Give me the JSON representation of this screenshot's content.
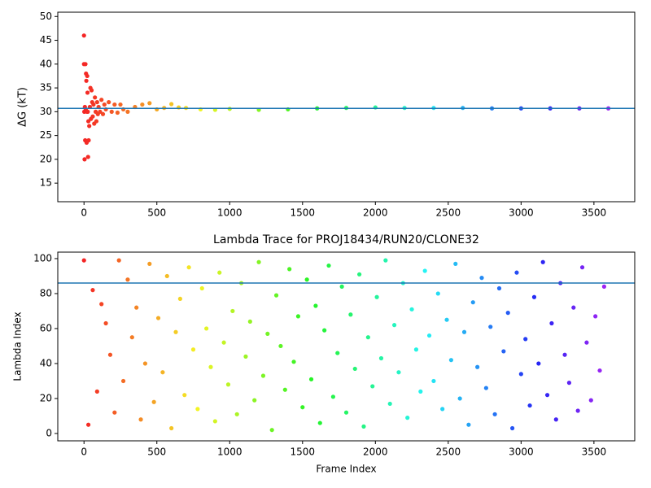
{
  "chart_data": [
    {
      "type": "scatter",
      "ylabel": "ΔG (kT)",
      "colormap": "rainbow_r",
      "hline": 30.7,
      "hline_color": "#1f77b4",
      "xlim": [
        -180,
        3780
      ],
      "ylim": [
        11.1,
        50.9
      ],
      "xticks": [
        0,
        500,
        1000,
        1500,
        2000,
        2500,
        3000,
        3500
      ],
      "yticks": [
        15,
        20,
        25,
        30,
        35,
        40,
        45,
        50
      ],
      "x": [
        0,
        0,
        2,
        4,
        6,
        8,
        10,
        12,
        14,
        16,
        18,
        20,
        22,
        24,
        26,
        28,
        30,
        32,
        36,
        40,
        44,
        48,
        52,
        56,
        60,
        65,
        70,
        75,
        80,
        85,
        90,
        95,
        100,
        110,
        120,
        130,
        140,
        150,
        170,
        190,
        210,
        230,
        250,
        270,
        300,
        350,
        400,
        450,
        500,
        550,
        600,
        650,
        700,
        800,
        900,
        1000,
        1200,
        1400,
        1600,
        1800,
        2000,
        2200,
        2400,
        2600,
        2800,
        3000,
        3200,
        3400,
        3599
      ],
      "y": [
        46,
        40,
        30,
        20,
        31,
        24,
        40,
        30.5,
        38,
        36.5,
        23.5,
        30,
        37.5,
        34,
        30,
        20.5,
        28,
        24,
        27,
        31,
        35,
        28.5,
        34.5,
        32,
        29,
        31.5,
        27.5,
        33,
        30,
        28,
        32,
        29.5,
        31,
        30,
        32.5,
        29.5,
        31.5,
        30.5,
        32,
        30,
        31.5,
        29.8,
        31.5,
        30.5,
        30,
        31,
        31.5,
        31.8,
        30.5,
        30.8,
        31.6,
        30.9,
        30.8,
        30.5,
        30.4,
        30.6,
        30.4,
        30.5,
        30.7,
        30.8,
        30.9,
        30.8,
        30.8,
        30.8,
        30.7,
        30.7,
        30.7,
        30.7,
        30.7
      ]
    },
    {
      "type": "scatter",
      "title": "Lambda Trace for PROJ18434/RUN20/CLONE32",
      "xlabel": "Frame Index",
      "ylabel": "Lambda Index",
      "colormap": "rainbow_r",
      "hline": 86,
      "hline_color": "#1f77b4",
      "xlim": [
        -180,
        3780
      ],
      "ylim": [
        -4.2,
        103.7
      ],
      "xticks": [
        0,
        500,
        1000,
        1500,
        2000,
        2500,
        3000,
        3500
      ],
      "yticks": [
        0,
        20,
        40,
        60,
        80,
        100
      ],
      "x": [
        0,
        30,
        60,
        90,
        120,
        150,
        180,
        210,
        240,
        270,
        300,
        330,
        360,
        390,
        420,
        450,
        480,
        510,
        540,
        570,
        600,
        630,
        660,
        690,
        720,
        750,
        780,
        810,
        840,
        870,
        900,
        930,
        960,
        990,
        1020,
        1050,
        1080,
        1110,
        1140,
        1170,
        1200,
        1230,
        1260,
        1290,
        1320,
        1350,
        1380,
        1410,
        1440,
        1470,
        1500,
        1530,
        1560,
        1590,
        1620,
        1650,
        1680,
        1710,
        1740,
        1770,
        1800,
        1830,
        1860,
        1890,
        1920,
        1950,
        1980,
        2010,
        2040,
        2070,
        2100,
        2130,
        2160,
        2190,
        2220,
        2250,
        2280,
        2310,
        2340,
        2370,
        2400,
        2430,
        2460,
        2490,
        2520,
        2550,
        2580,
        2610,
        2640,
        2670,
        2700,
        2730,
        2760,
        2790,
        2820,
        2850,
        2880,
        2910,
        2940,
        2970,
        3000,
        3030,
        3060,
        3090,
        3120,
        3150,
        3180,
        3210,
        3240,
        3270,
        3300,
        3330,
        3360,
        3390,
        3420,
        3450,
        3480,
        3510,
        3540,
        3570
      ],
      "y": [
        99,
        5,
        82,
        24,
        74,
        63,
        45,
        12,
        99,
        30,
        88,
        55,
        72,
        8,
        40,
        97,
        18,
        66,
        35,
        90,
        3,
        58,
        77,
        22,
        95,
        48,
        14,
        83,
        60,
        38,
        7,
        92,
        52,
        28,
        70,
        11,
        86,
        44,
        64,
        19,
        98,
        33,
        57,
        2,
        79,
        50,
        25,
        94,
        41,
        67,
        15,
        88,
        31,
        73,
        6,
        59,
        96,
        21,
        46,
        84,
        12,
        68,
        37,
        91,
        4,
        55,
        27,
        78,
        43,
        99,
        17,
        62,
        35,
        86,
        9,
        71,
        48,
        24,
        93,
        56,
        30,
        80,
        14,
        65,
        42,
        97,
        20,
        58,
        5,
        75,
        38,
        89,
        26,
        61,
        11,
        83,
        47,
        69,
        3,
        92,
        34,
        54,
        16,
        78,
        40,
        98,
        22,
        63,
        8,
        86,
        45,
        29,
        72,
        13,
        95,
        52,
        19,
        67,
        36,
        84
      ]
    }
  ]
}
